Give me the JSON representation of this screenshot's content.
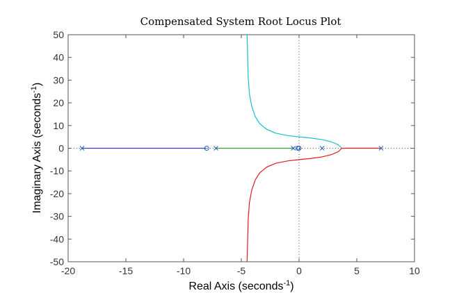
{
  "chart_data": {
    "type": "line",
    "title": "Compensated System Root Locus Plot",
    "xlabel": "Real Axis (seconds",
    "ylabel": "Imaginary Axis (seconds",
    "label_superscript": "-1",
    "label_suffix": ")",
    "xlim": [
      -20,
      10
    ],
    "ylim": [
      -50,
      50
    ],
    "xticks": [
      -20,
      -15,
      -10,
      -5,
      0,
      5,
      10
    ],
    "yticks": [
      -50,
      -40,
      -30,
      -20,
      -10,
      0,
      10,
      20,
      30,
      40,
      50
    ],
    "xtick_labels": [
      "-20",
      "-15",
      "-10",
      "-5",
      "0",
      "5",
      "10"
    ],
    "ytick_labels": [
      "-50",
      "-40",
      "-30",
      "-20",
      "-10",
      "0",
      "10",
      "20",
      "30",
      "40",
      "50"
    ],
    "grid": false,
    "colors": {
      "blue": "#3a3acb",
      "green": "#2ca02c",
      "red": "#e31a1c",
      "cyan": "#17becf",
      "marker": "#1f5fbf",
      "axis": "#555555",
      "reference": "#555555"
    },
    "poles": [
      {
        "x": -18.8,
        "y": 0
      },
      {
        "x": -7.2,
        "y": 0
      },
      {
        "x": -0.5,
        "y": 0
      },
      {
        "x": 2.0,
        "y": 0
      },
      {
        "x": 7.1,
        "y": 0
      }
    ],
    "zeros": [
      {
        "x": -8.0,
        "y": 0
      },
      {
        "x": -0.1,
        "y": 0
      },
      {
        "x": 0.0,
        "y": 0
      }
    ],
    "series": [
      {
        "color": "blue",
        "x": [
          -18.8,
          -8.0
        ],
        "y": [
          0,
          0
        ]
      },
      {
        "color": "green",
        "x": [
          -7.2,
          -0.5
        ],
        "y": [
          0,
          0
        ]
      },
      {
        "color": "red",
        "x": [
          7.1,
          3.7
        ],
        "y": [
          0,
          0
        ]
      },
      {
        "color": "red",
        "x": [
          3.7,
          3.4,
          2.8,
          2.0,
          1.0,
          0.0,
          -1.0,
          -2.0,
          -2.8,
          -3.4,
          -3.8,
          -4.1,
          -4.3,
          -4.4,
          -4.45,
          -4.5
        ],
        "y": [
          0,
          -1.5,
          -2.8,
          -3.8,
          -4.5,
          -5.0,
          -5.6,
          -6.6,
          -8.3,
          -10.8,
          -14.0,
          -18.5,
          -24.0,
          -31.0,
          -40.0,
          -50.0
        ]
      },
      {
        "color": "cyan",
        "x": [
          3.7,
          3.4,
          2.8,
          2.0,
          1.0,
          0.0,
          -1.0,
          -2.0,
          -2.8,
          -3.4,
          -3.8,
          -4.1,
          -4.3,
          -4.4,
          -4.45,
          -4.5
        ],
        "y": [
          0,
          1.5,
          2.8,
          3.8,
          4.5,
          5.0,
          5.6,
          6.6,
          8.3,
          10.8,
          14.0,
          18.5,
          24.0,
          31.0,
          40.0,
          50.0
        ]
      }
    ]
  }
}
